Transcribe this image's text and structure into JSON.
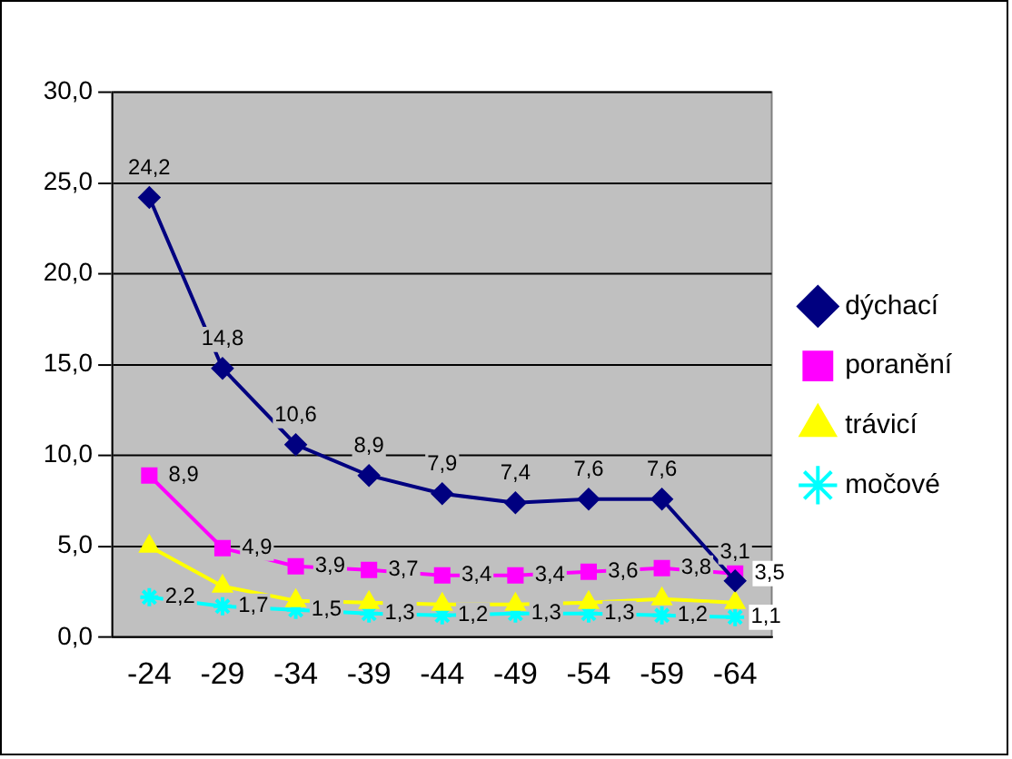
{
  "chart_data": {
    "type": "line",
    "categories": [
      "-24",
      "-29",
      "-34",
      "-39",
      "-44",
      "-49",
      "-54",
      "-59",
      "-64"
    ],
    "series": [
      {
        "name": "dýchací",
        "color": "#000080",
        "marker": "diamond",
        "values": [
          24.2,
          14.8,
          10.6,
          8.9,
          7.9,
          7.4,
          7.6,
          7.6,
          3.1
        ],
        "value_labels": [
          "24,2",
          "14,8",
          "10,6",
          "8,9",
          "7,9",
          "7,4",
          "7,6",
          "7,6",
          "3,1"
        ]
      },
      {
        "name": "poranění",
        "color": "#ff00ff",
        "marker": "square",
        "values": [
          8.9,
          4.9,
          3.9,
          3.7,
          3.4,
          3.4,
          3.6,
          3.8,
          3.5
        ],
        "value_labels": [
          "8,9",
          "4,9",
          "3,9",
          "3,7",
          "3,4",
          "3,4",
          "3,6",
          "3,8",
          "3,5"
        ]
      },
      {
        "name": "trávicí",
        "color": "#ffff00",
        "marker": "triangle",
        "values": [
          5.0,
          2.8,
          2.0,
          1.9,
          1.8,
          1.8,
          1.9,
          2.1,
          1.9
        ]
      },
      {
        "name": "močové",
        "color": "#00ffff",
        "marker": "cross",
        "values": [
          2.2,
          1.7,
          1.5,
          1.3,
          1.2,
          1.3,
          1.3,
          1.2,
          1.1
        ],
        "value_labels": [
          "2,2",
          "1,7",
          "1,5",
          "1,3",
          "1,2",
          "1,3",
          "1,3",
          "1,2",
          "1,1"
        ]
      }
    ],
    "ylim": [
      0,
      30
    ],
    "yticks": [
      {
        "value": 0,
        "label": "0,0"
      },
      {
        "value": 5,
        "label": "5,0"
      },
      {
        "value": 10,
        "label": "10,0"
      },
      {
        "value": 15,
        "label": "15,0"
      },
      {
        "value": 20,
        "label": "20,0"
      },
      {
        "value": 25,
        "label": "25,0"
      },
      {
        "value": 30,
        "label": "30,0"
      }
    ],
    "grid": "y",
    "legend": "right",
    "line_style": "solid"
  }
}
